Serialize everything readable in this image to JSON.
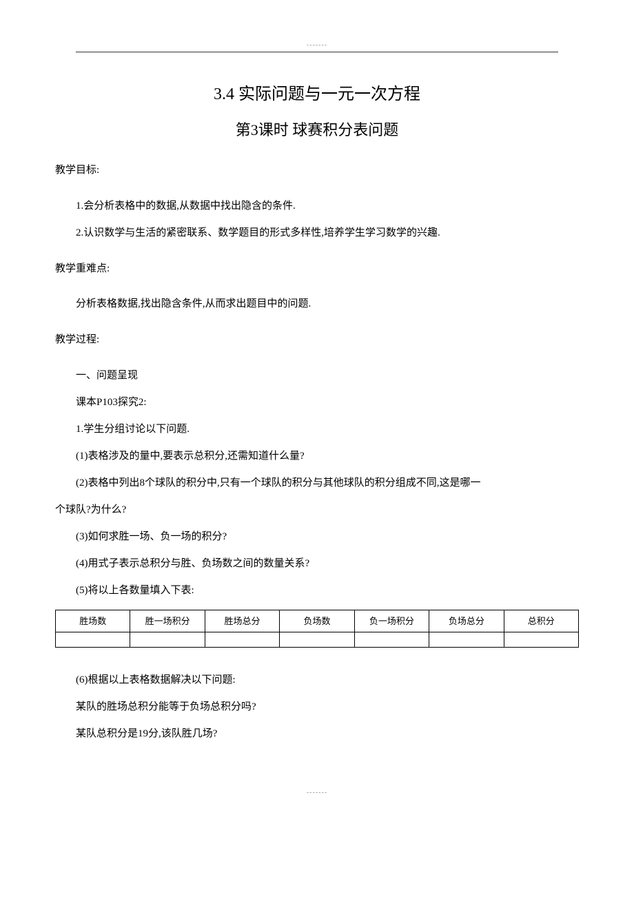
{
  "decor": {
    "top_dots": "-------",
    "bottom_dots": "-------"
  },
  "title": {
    "main": "3.4 实际问题与一元一次方程",
    "sub": "第3课时 球赛积分表问题"
  },
  "sections": {
    "goals_head": "教学目标:",
    "goal1": "1.会分析表格中的数据,从数据中找出隐含的条件.",
    "goal2": "2.认识数学与生活的紧密联系、数学题目的形式多样性,培养学生学习数学的兴趣.",
    "diff_head": "教学重难点:",
    "diff_body": "分析表格数据,找出隐含条件,从而求出题目中的问题.",
    "proc_head": "教学过程:",
    "proc_1": "一、问题呈现",
    "proc_2": "课本P103探究2:",
    "proc_3": "1.学生分组讨论以下问题.",
    "q1": "(1)表格涉及的量中,要表示总积分,还需知道什么量?",
    "q2a": "(2)表格中列出8个球队的积分中,只有一个球队的积分与其他球队的积分组成不同,这是哪一",
    "q2b": "个球队?为什么?",
    "q3": "(3)如何求胜一场、负一场的积分?",
    "q4": "(4)用式子表示总积分与胜、负场数之间的数量关系?",
    "q5": "(5)将以上各数量填入下表:",
    "q6": " (6)根据以上表格数据解决以下问题:",
    "q6a": "某队的胜场总积分能等于负场总积分吗?",
    "q6b": "某队总积分是19分,该队胜几场?"
  },
  "table": {
    "headers": [
      "胜场数",
      "胜一场积分",
      "胜场总分",
      "负场数",
      "负一场积分",
      "负场总分",
      "总积分"
    ],
    "row": [
      "",
      "",
      "",
      "",
      "",
      "",
      ""
    ]
  },
  "style": {
    "page_bg": "#ffffff",
    "text_color": "#000000",
    "title_fontsize": 24,
    "subtitle_fontsize": 22,
    "body_fontsize": 15,
    "table_fontsize": 13,
    "table_border_color": "#000000",
    "rule_color": "#333333",
    "dot_color": "#999999"
  }
}
